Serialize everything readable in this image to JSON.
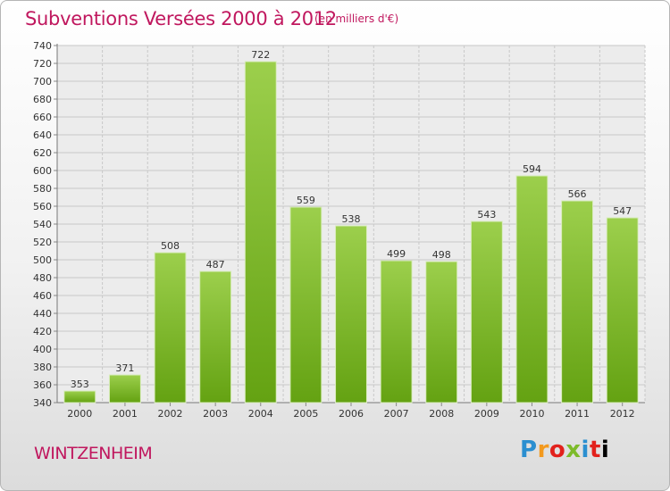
{
  "header": {
    "title": "Subventions Versées 2000 à 2012",
    "unit": "(en milliers d'€)"
  },
  "footer": {
    "town": "WINTZENHEIM",
    "logo": "Proxiti"
  },
  "colors": {
    "accent": "#c0175e",
    "bar_light": "#9ccf4c",
    "bar_dark": "#64a212",
    "grid": "#c8c8c8"
  },
  "chart_data": {
    "type": "bar",
    "title": "Subventions Versées 2000 à 2012",
    "subtitle": "(en milliers d'€)",
    "xlabel": "",
    "ylabel": "",
    "categories": [
      "2000",
      "2001",
      "2002",
      "2003",
      "2004",
      "2005",
      "2006",
      "2007",
      "2008",
      "2009",
      "2010",
      "2011",
      "2012"
    ],
    "values": [
      353,
      371,
      508,
      487,
      722,
      559,
      538,
      499,
      498,
      543,
      594,
      566,
      547
    ],
    "ylim": [
      340,
      740
    ],
    "ytick_step": 20,
    "grid": true,
    "data_labels": true,
    "legend": "none"
  }
}
